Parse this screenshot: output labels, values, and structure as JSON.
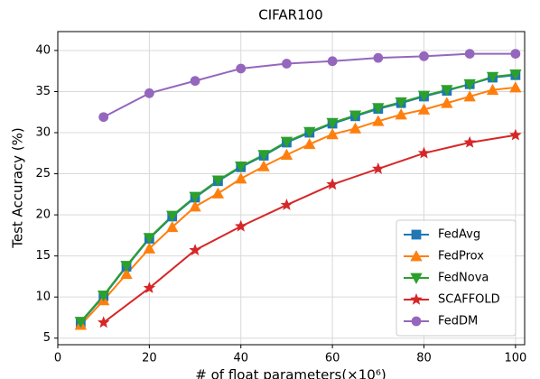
{
  "chart_data": {
    "type": "line",
    "title": "CIFAR100",
    "xlabel": "# of float parameters(×10⁶)",
    "ylabel": "Test Accuracy (%)",
    "xlim": [
      0,
      102
    ],
    "ylim": [
      4.2,
      42.3
    ],
    "xticks": [
      0,
      20,
      40,
      60,
      80,
      100
    ],
    "yticks": [
      5,
      10,
      15,
      20,
      25,
      30,
      35,
      40
    ],
    "grid": true,
    "legend": "lower right",
    "series": [
      {
        "name": "FedAvg",
        "color": "#1f77b4",
        "marker": "square",
        "x": [
          5,
          10,
          15,
          20,
          25,
          30,
          35,
          40,
          45,
          50,
          55,
          60,
          65,
          70,
          75,
          80,
          85,
          90,
          95,
          100
        ],
        "values": [
          6.9,
          10.1,
          13.7,
          17.1,
          19.8,
          22.1,
          24.1,
          25.8,
          27.2,
          28.8,
          30.0,
          31.1,
          32.0,
          32.9,
          33.6,
          34.4,
          35.1,
          35.9,
          36.7,
          37.0
        ]
      },
      {
        "name": "FedProx",
        "color": "#ff7f0e",
        "marker": "triangle-up",
        "x": [
          5,
          10,
          15,
          20,
          25,
          30,
          35,
          40,
          45,
          50,
          55,
          60,
          65,
          70,
          75,
          80,
          85,
          90,
          95,
          100
        ],
        "values": [
          6.6,
          9.6,
          12.8,
          15.9,
          18.5,
          21.0,
          22.6,
          24.4,
          25.9,
          27.3,
          28.6,
          29.8,
          30.5,
          31.4,
          32.2,
          32.8,
          33.6,
          34.4,
          35.2,
          35.5
        ]
      },
      {
        "name": "FedNova",
        "color": "#2ca02c",
        "marker": "triangle-down",
        "x": [
          5,
          10,
          15,
          20,
          25,
          30,
          35,
          40,
          45,
          50,
          55,
          60,
          65,
          70,
          75,
          80,
          85,
          90,
          95,
          100
        ],
        "values": [
          7.0,
          10.2,
          13.8,
          17.2,
          19.9,
          22.2,
          24.2,
          25.9,
          27.3,
          28.9,
          30.1,
          31.2,
          32.1,
          33.0,
          33.7,
          34.5,
          35.2,
          35.9,
          36.8,
          37.1
        ]
      },
      {
        "name": "SCAFFOLD",
        "color": "#d62728",
        "marker": "star",
        "x": [
          10,
          20,
          30,
          40,
          50,
          60,
          70,
          80,
          90,
          100
        ],
        "values": [
          6.9,
          11.1,
          15.7,
          18.6,
          21.2,
          23.7,
          25.6,
          27.5,
          28.8,
          29.7
        ]
      },
      {
        "name": "FedDM",
        "color": "#9467bd",
        "marker": "circle",
        "x": [
          10,
          20,
          30,
          40,
          50,
          60,
          70,
          80,
          90,
          100
        ],
        "values": [
          31.9,
          34.8,
          36.3,
          37.8,
          38.4,
          38.7,
          39.1,
          39.3,
          39.6,
          39.6
        ]
      }
    ]
  }
}
